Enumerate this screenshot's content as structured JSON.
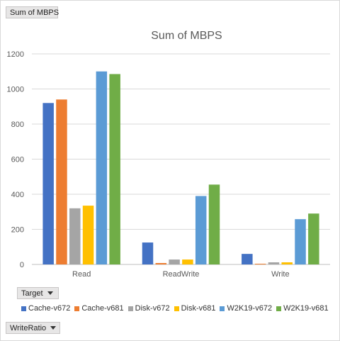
{
  "buttons": {
    "sum_label": "Sum of MBPS",
    "target_label": "Target",
    "writeratio_label": "WriteRatio"
  },
  "chart_data": {
    "type": "bar",
    "title": "Sum of MBPS",
    "xlabel": "",
    "ylabel": "",
    "ylim": [
      0,
      1200
    ],
    "yticks": [
      0,
      200,
      400,
      600,
      800,
      1000,
      1200
    ],
    "grid": true,
    "legend_position": "bottom",
    "categories": [
      "Read",
      "ReadWrite",
      "Write"
    ],
    "series": [
      {
        "name": "Cache-v672",
        "color": "#4472c4",
        "values": [
          920,
          125,
          60
        ]
      },
      {
        "name": "Cache-v681",
        "color": "#ed7d31",
        "values": [
          940,
          8,
          4
        ]
      },
      {
        "name": "Disk-v672",
        "color": "#a5a5a5",
        "values": [
          320,
          28,
          12
        ]
      },
      {
        "name": "Disk-v681",
        "color": "#ffc000",
        "values": [
          335,
          28,
          12
        ]
      },
      {
        "name": "W2K19-v672",
        "color": "#5b9bd5",
        "values": [
          1100,
          390,
          258
        ]
      },
      {
        "name": "W2K19-v681",
        "color": "#70ad47",
        "values": [
          1085,
          455,
          290
        ]
      }
    ]
  }
}
